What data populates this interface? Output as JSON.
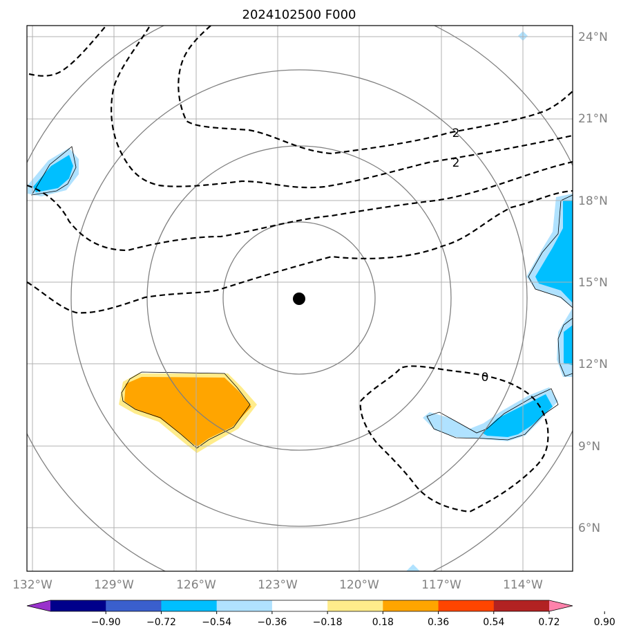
{
  "title": "2024102500 F000",
  "lon_labels": [
    "132°W",
    "129°W",
    "126°W",
    "123°W",
    "120°W",
    "117°W",
    "114°W"
  ],
  "lat_labels": [
    "24°N",
    "21°N",
    "18°N",
    "15°N",
    "12°N",
    "9°N",
    "6°N"
  ],
  "contour_labels": [
    "2",
    "2",
    "0"
  ],
  "colorbar": {
    "ticks": [
      "−0.90",
      "−0.72",
      "−0.54",
      "−0.36",
      "−0.18",
      "0.18",
      "0.36",
      "0.54",
      "0.72",
      "0.90"
    ],
    "colors": [
      "#9932cc",
      "#00008b",
      "#3a5fcd",
      "#00bfff",
      "#b0e2ff",
      "#ffffff",
      "#ffec8b",
      "#ffa500",
      "#ff4500",
      "#b22222",
      "#ff82ab"
    ]
  },
  "storm_center": {
    "lon": -122.2,
    "lat": 14.4
  }
}
